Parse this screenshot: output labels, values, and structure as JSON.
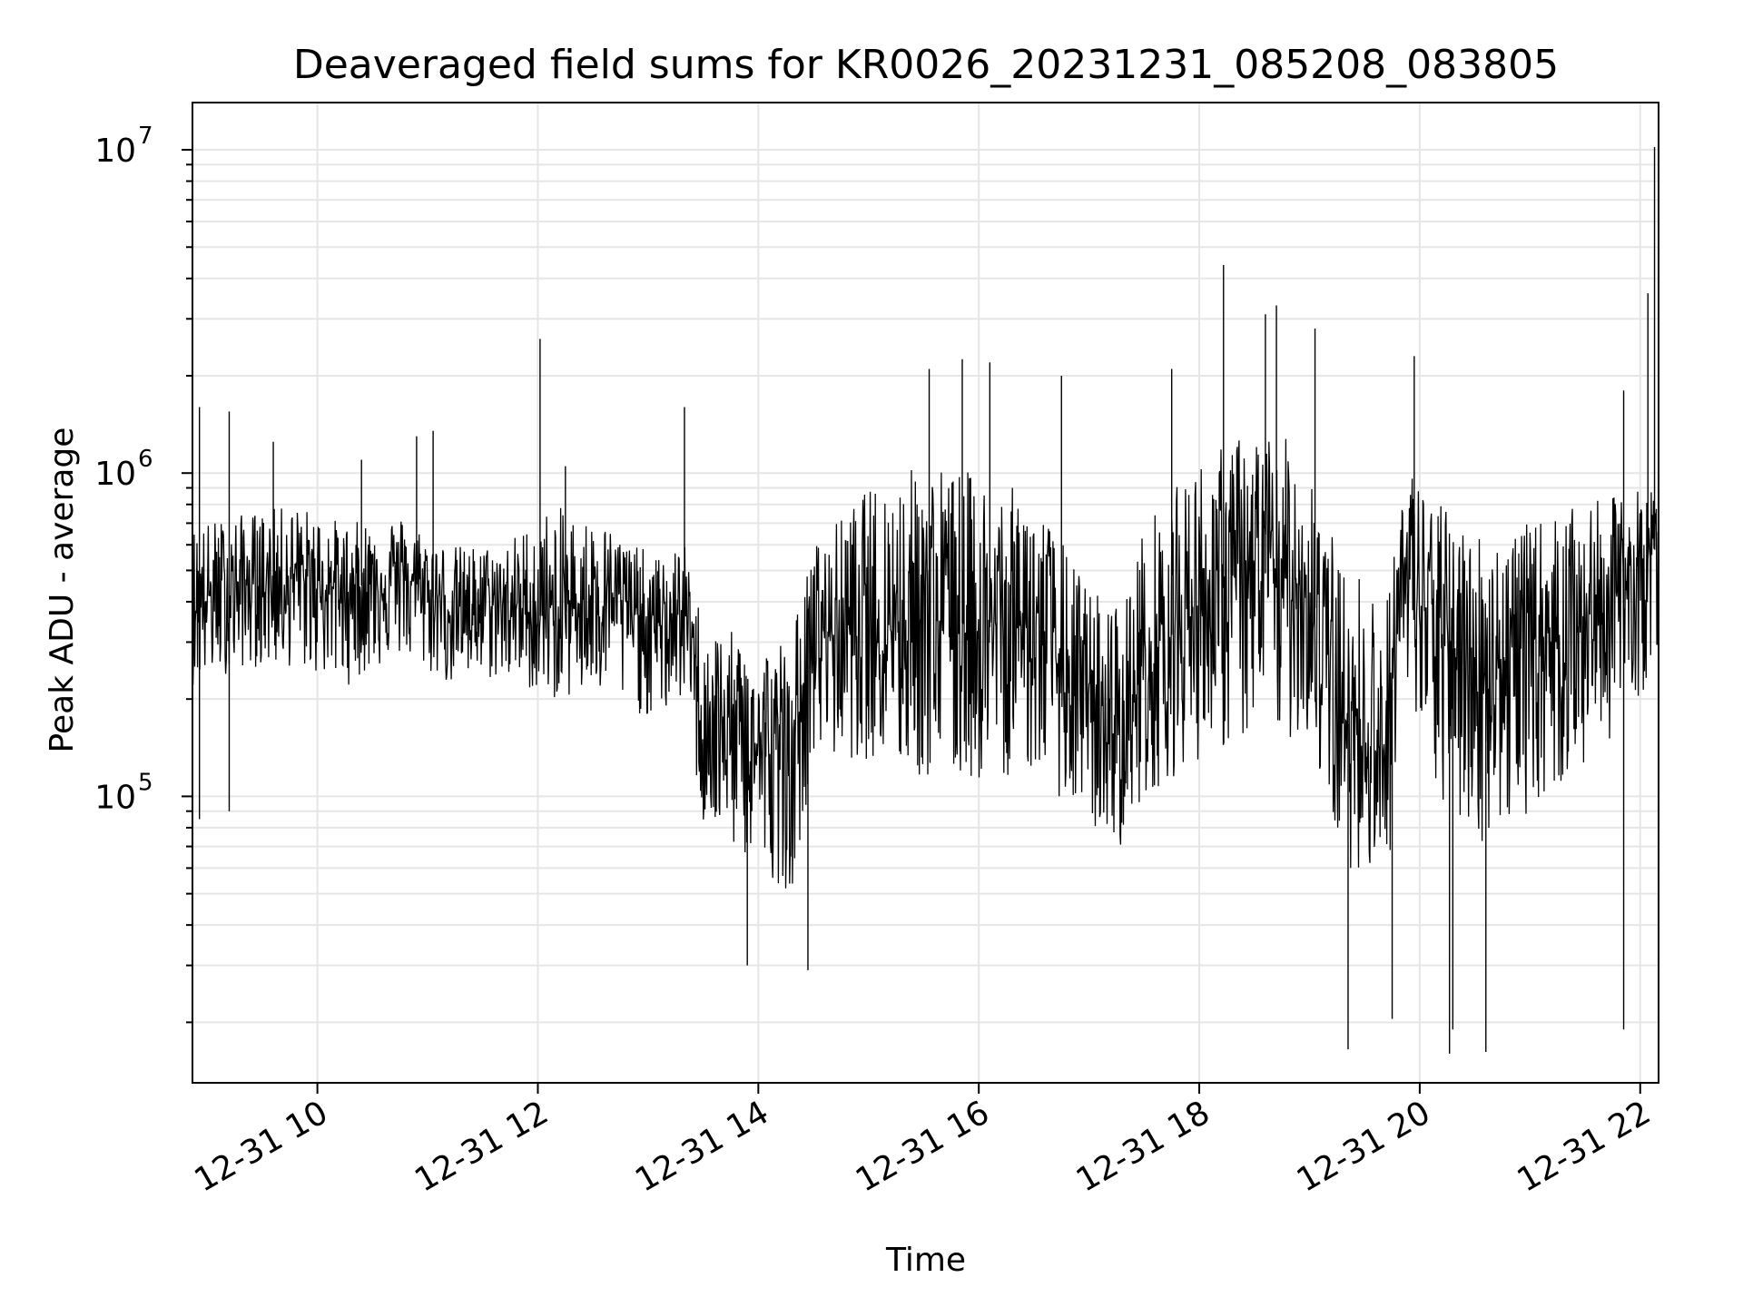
{
  "chart_data": {
    "type": "line",
    "title": "Deaveraged field sums for KR0026_20231231_085208_083805",
    "xlabel": "Time",
    "ylabel": "Peak ADU - average",
    "yscale": "log",
    "xlim": [
      "12-31 08:52",
      "12-31 22:10"
    ],
    "ylim": [
      13000,
      14000000
    ],
    "grid": true,
    "line_color": "#000000",
    "x_ticks": [
      {
        "value": "12-31 10",
        "hour": 10
      },
      {
        "value": "12-31 12",
        "hour": 12
      },
      {
        "value": "12-31 14",
        "hour": 14
      },
      {
        "value": "12-31 16",
        "hour": 16
      },
      {
        "value": "12-31 18",
        "hour": 18
      },
      {
        "value": "12-31 20",
        "hour": 20
      },
      {
        "value": "12-31 22",
        "hour": 22
      }
    ],
    "y_ticks": [
      {
        "value": 100000,
        "base": "10",
        "exp": "5"
      },
      {
        "value": 1000000,
        "base": "10",
        "exp": "6"
      },
      {
        "value": 10000000,
        "base": "10",
        "exp": "7"
      }
    ],
    "series": [
      {
        "x_hours": [
          8.87,
          9.33,
          9.8,
          10.27,
          10.73,
          11.2,
          11.67,
          12.13,
          12.6,
          13.07,
          13.33,
          13.5,
          14.0,
          14.3,
          14.5,
          15.0,
          15.5,
          16.0,
          16.5,
          17.0,
          17.3,
          17.5,
          18.0,
          18.5,
          19.0,
          19.3,
          19.5,
          19.7,
          19.85,
          20.2,
          20.6,
          21.0,
          21.5,
          22.0,
          22.2
        ],
        "y": [
          400000,
          450000,
          480000,
          430000,
          500000,
          380000,
          400000,
          350000,
          450000,
          330000,
          380000,
          170000,
          140000,
          130000,
          320000,
          350000,
          380000,
          330000,
          350000,
          170000,
          150000,
          250000,
          400000,
          500000,
          450000,
          170000,
          160000,
          140000,
          500000,
          300000,
          250000,
          300000,
          350000,
          500000,
          650000
        ],
        "range_hi": [
          700000,
          750000,
          800000,
          700000,
          750000,
          600000,
          600000,
          800000,
          700000,
          550000,
          600000,
          350000,
          300000,
          320000,
          600000,
          900000,
          1100000,
          1000000,
          850000,
          450000,
          400000,
          700000,
          1100000,
          1400000,
          1200000,
          500000,
          500000,
          400000,
          1100000,
          800000,
          650000,
          700000,
          800000,
          900000,
          900000
        ],
        "range_lo": [
          220000,
          250000,
          250000,
          220000,
          270000,
          220000,
          230000,
          200000,
          200000,
          170000,
          200000,
          80000,
          60000,
          50000,
          130000,
          130000,
          110000,
          110000,
          120000,
          80000,
          70000,
          100000,
          130000,
          150000,
          150000,
          60000,
          60000,
          50000,
          200000,
          90000,
          70000,
          90000,
          120000,
          200000,
          300000
        ],
        "spikes": [
          {
            "x_hour": 8.93,
            "y": 1600000
          },
          {
            "x_hour": 9.2,
            "y": 1550000
          },
          {
            "x_hour": 9.6,
            "y": 1250000
          },
          {
            "x_hour": 10.4,
            "y": 1100000
          },
          {
            "x_hour": 10.9,
            "y": 1300000
          },
          {
            "x_hour": 11.05,
            "y": 1350000
          },
          {
            "x_hour": 12.02,
            "y": 2600000
          },
          {
            "x_hour": 12.25,
            "y": 1050000
          },
          {
            "x_hour": 13.33,
            "y": 1600000
          },
          {
            "x_hour": 15.55,
            "y": 2100000
          },
          {
            "x_hour": 15.85,
            "y": 2250000
          },
          {
            "x_hour": 16.1,
            "y": 2200000
          },
          {
            "x_hour": 16.75,
            "y": 2000000
          },
          {
            "x_hour": 17.75,
            "y": 2100000
          },
          {
            "x_hour": 18.22,
            "y": 4400000
          },
          {
            "x_hour": 18.6,
            "y": 3100000
          },
          {
            "x_hour": 18.7,
            "y": 3300000
          },
          {
            "x_hour": 19.05,
            "y": 2800000
          },
          {
            "x_hour": 19.95,
            "y": 2300000
          },
          {
            "x_hour": 21.85,
            "y": 1800000
          },
          {
            "x_hour": 22.07,
            "y": 3600000
          },
          {
            "x_hour": 22.13,
            "y": 10200000
          },
          {
            "x_hour": 13.9,
            "y": 30000
          },
          {
            "x_hour": 14.45,
            "y": 29000
          },
          {
            "x_hour": 19.35,
            "y": 16500
          },
          {
            "x_hour": 19.75,
            "y": 20500
          },
          {
            "x_hour": 20.27,
            "y": 16000
          },
          {
            "x_hour": 20.6,
            "y": 16200
          },
          {
            "x_hour": 20.3,
            "y": 19000
          },
          {
            "x_hour": 21.85,
            "y": 19000
          },
          {
            "x_hour": 9.2,
            "y": 90000
          },
          {
            "x_hour": 8.93,
            "y": 85000
          }
        ]
      }
    ]
  }
}
